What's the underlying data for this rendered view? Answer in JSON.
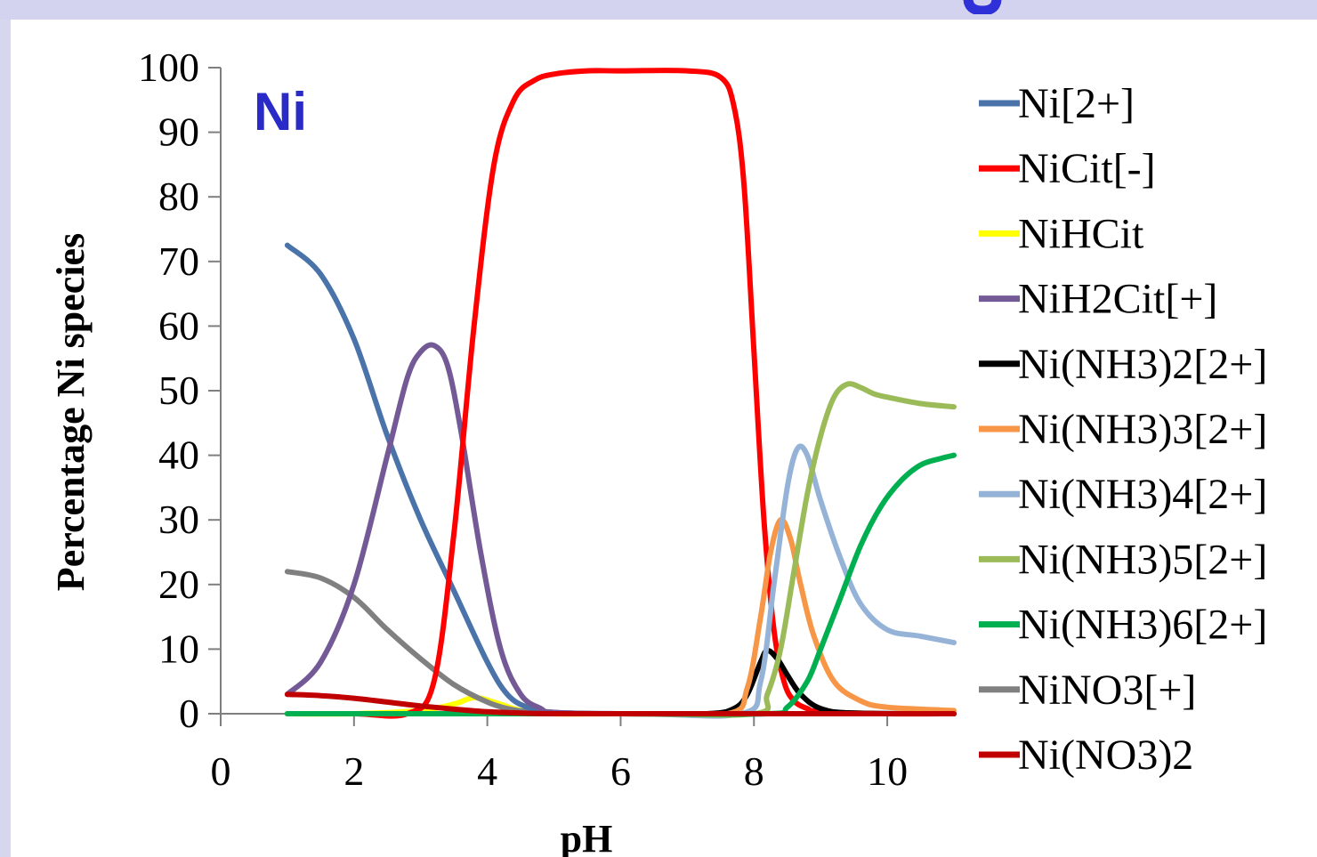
{
  "chart_data": {
    "type": "line",
    "title": "",
    "annotation": "Ni",
    "xlabel": "pH",
    "ylabel": "Percentage Ni species",
    "xlim": [
      0,
      11
    ],
    "ylim": [
      0,
      100
    ],
    "xticks": [
      0,
      2,
      4,
      6,
      8,
      10
    ],
    "yticks": [
      0,
      10,
      20,
      30,
      40,
      50,
      60,
      70,
      80,
      90,
      100
    ],
    "grid": false,
    "legend": "right",
    "series": [
      {
        "name": "Ni[2+]",
        "color": "#4a73aa",
        "x": [
          1,
          1.5,
          2,
          2.5,
          3,
          3.5,
          4,
          4.3,
          4.6,
          5,
          6,
          7,
          8,
          9,
          10,
          11
        ],
        "y": [
          72.5,
          68,
          58,
          43,
          30,
          19,
          8,
          3,
          1,
          0.2,
          0,
          0,
          0,
          0,
          0,
          0
        ]
      },
      {
        "name": "NiCit[-]",
        "color": "#ff0000",
        "x": [
          1,
          2,
          2.8,
          3.2,
          3.5,
          3.8,
          4.1,
          4.4,
          4.7,
          5,
          5.5,
          6,
          7,
          7.5,
          7.7,
          7.85,
          8,
          8.15,
          8.3,
          8.45,
          8.6,
          8.8,
          9,
          10,
          11
        ],
        "y": [
          0,
          0,
          0,
          5,
          28,
          60,
          85,
          95,
          98,
          99,
          99.5,
          99.5,
          99.5,
          98.5,
          94,
          82,
          56,
          30,
          13,
          5,
          2,
          0.8,
          0.3,
          0,
          0
        ]
      },
      {
        "name": "NiHCit",
        "color": "#ffff00",
        "x": [
          1,
          2,
          3,
          3.5,
          3.8,
          4.1,
          4.5,
          5,
          6,
          8,
          11
        ],
        "y": [
          0,
          0,
          0.5,
          1.5,
          2.5,
          1.8,
          0.5,
          0,
          0,
          0,
          0
        ]
      },
      {
        "name": "NiH2Cit[+]",
        "color": "#735a96",
        "x": [
          1,
          1.5,
          2,
          2.5,
          2.8,
          3.0,
          3.2,
          3.4,
          3.6,
          3.9,
          4.2,
          4.5,
          4.8,
          5,
          6,
          8,
          11
        ],
        "y": [
          3,
          8,
          20,
          40,
          52,
          56,
          57,
          54,
          44,
          25,
          10,
          3,
          0.8,
          0.2,
          0,
          0,
          0
        ]
      },
      {
        "name": "Ni(NH3)2[2+]",
        "color": "#000000",
        "x": [
          1,
          6,
          7.3,
          7.7,
          7.9,
          8.1,
          8.2,
          8.35,
          8.5,
          8.7,
          9,
          9.5,
          11
        ],
        "y": [
          0,
          0,
          0,
          0.8,
          3,
          8,
          9.8,
          8.5,
          6,
          3,
          0.8,
          0.1,
          0
        ]
      },
      {
        "name": "Ni(NH3)3[2+]",
        "color": "#f79646",
        "x": [
          1,
          6,
          7.6,
          7.9,
          8.1,
          8.25,
          8.4,
          8.55,
          8.7,
          8.9,
          9.2,
          9.6,
          10,
          11
        ],
        "y": [
          0,
          0,
          0,
          4,
          15,
          25,
          30,
          27,
          20,
          12,
          5,
          2,
          1,
          0.5
        ]
      },
      {
        "name": "Ni(NH3)4[2+]",
        "color": "#95b3d7",
        "x": [
          1,
          6,
          7.8,
          8.1,
          8.3,
          8.5,
          8.65,
          8.8,
          9,
          9.3,
          9.6,
          10,
          10.5,
          11
        ],
        "y": [
          0,
          0,
          0,
          5,
          20,
          35,
          41,
          40,
          33,
          24,
          17,
          13,
          12,
          11
        ]
      },
      {
        "name": "Ni(NH3)5[2+]",
        "color": "#9bbb59",
        "x": [
          1,
          6,
          8,
          8.2,
          8.4,
          8.6,
          8.8,
          9,
          9.2,
          9.4,
          9.6,
          9.8,
          10,
          10.5,
          11
        ],
        "y": [
          0,
          0,
          0,
          3,
          10,
          22,
          34,
          43,
          49,
          51,
          50.5,
          49.5,
          49,
          48,
          47.5
        ]
      },
      {
        "name": "Ni(NH3)6[2+]",
        "color": "#00b050",
        "x": [
          1,
          6,
          8.2,
          8.5,
          8.8,
          9,
          9.3,
          9.6,
          9.9,
          10.2,
          10.5,
          10.8,
          11
        ],
        "y": [
          0,
          0,
          0,
          1,
          5,
          10,
          18,
          26,
          32,
          36,
          38.5,
          39.5,
          40
        ]
      },
      {
        "name": "NiNO3[+]",
        "color": "#808080",
        "x": [
          1,
          1.5,
          2,
          2.5,
          3,
          3.5,
          4,
          4.3,
          4.6,
          5,
          6,
          11
        ],
        "y": [
          22,
          21,
          18,
          13,
          8.5,
          4.5,
          1.8,
          0.8,
          0.3,
          0.1,
          0,
          0
        ]
      },
      {
        "name": "Ni(NO3)2",
        "color": "#c00000",
        "x": [
          1,
          1.5,
          2,
          2.5,
          3,
          3.5,
          4,
          4.5,
          5,
          6,
          11
        ],
        "y": [
          3,
          2.8,
          2.4,
          1.8,
          1.2,
          0.7,
          0.3,
          0.1,
          0,
          0,
          0
        ]
      }
    ]
  }
}
